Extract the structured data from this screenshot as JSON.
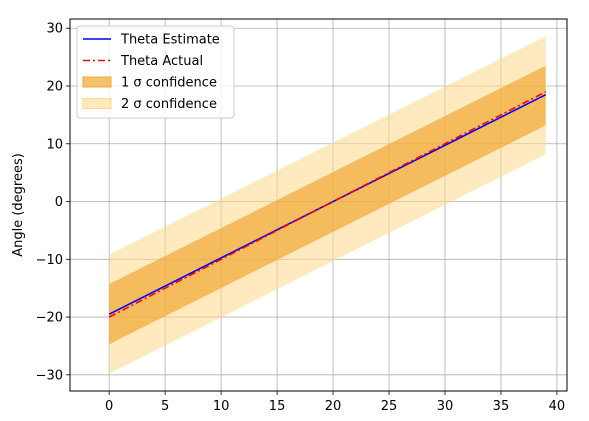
{
  "chart_data": {
    "type": "line",
    "title": "",
    "xlabel": "",
    "ylabel": "Angle (degrees)",
    "xlim": [
      -3.5,
      40.9
    ],
    "ylim": [
      -32.8,
      31.6
    ],
    "xticks": [
      0,
      5,
      10,
      15,
      20,
      25,
      30,
      35,
      40
    ],
    "yticks": [
      -30,
      -20,
      -10,
      0,
      10,
      20,
      30
    ],
    "grid": true,
    "legend_position": "top-left",
    "x_start": 0,
    "x_end": 39,
    "series": [
      {
        "name": "Theta Estimate",
        "kind": "line",
        "color": "#0000ff",
        "style": "solid",
        "start": [
          0,
          -19.5
        ],
        "end": [
          39,
          18.5
        ]
      },
      {
        "name": "Theta Actual",
        "kind": "line",
        "color": "#ff0000",
        "style": "dashdot",
        "start": [
          0,
          -20.0
        ],
        "end": [
          39,
          19.0
        ]
      }
    ],
    "bands": [
      {
        "name": "1 σ confidence",
        "color": "#f0a832",
        "opacity": 0.7,
        "lower_start": -24.7,
        "lower_end": 13.2,
        "upper_start": -14.3,
        "upper_end": 23.5
      },
      {
        "name": "2 σ confidence",
        "color": "#ffd88a",
        "opacity": 0.55,
        "lower_start": -29.8,
        "lower_end": 8.2,
        "upper_start": -9.2,
        "upper_end": 28.6
      }
    ]
  }
}
